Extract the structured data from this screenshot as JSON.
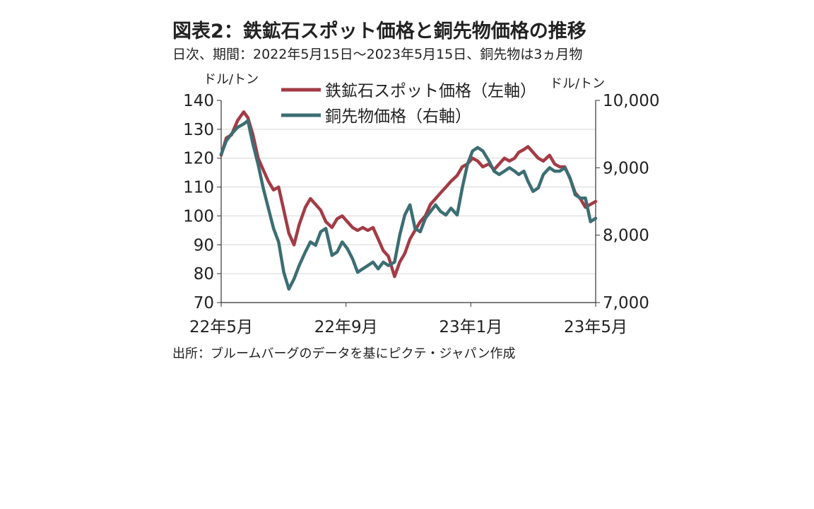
{
  "title": "図表2：鉄鉱石スポット価格と銅先物価格の推移",
  "subtitle": "日次、期間：2022年5月15日～2023年5月15日、銅先物は3ヵ月物",
  "source": "出所：ブルームバーグのデータを基にピクテ・ジャパン作成",
  "chart_data": {
    "type": "line",
    "ylabel_left": "ドル/トン",
    "ylabel_right": "ドル/トン",
    "ylim_left": [
      70,
      140
    ],
    "ylim_right": [
      7000,
      10000
    ],
    "yticks_left": [
      "140",
      "130",
      "120",
      "110",
      "100",
      "90",
      "80",
      "70"
    ],
    "yticks_right": [
      "10,000",
      "9,000",
      "8,000",
      "7,000"
    ],
    "xticks": [
      "22年5月",
      "22年9月",
      "23年1月",
      "23年5月"
    ],
    "xlim": [
      "2022-05-15",
      "2023-05-15"
    ],
    "grid": true,
    "legend_position": "top-center",
    "series": [
      {
        "name": "鉄鉱石スポット価格（左軸）",
        "axis": "left",
        "color": "#A33B45",
        "points": [
          [
            "2022-05-15",
            121
          ],
          [
            "2022-05-20",
            127
          ],
          [
            "2022-05-25",
            128
          ],
          [
            "2022-05-31",
            133
          ],
          [
            "2022-06-06",
            136
          ],
          [
            "2022-06-10",
            134
          ],
          [
            "2022-06-15",
            128
          ],
          [
            "2022-06-20",
            120
          ],
          [
            "2022-06-25",
            116
          ],
          [
            "2022-06-30",
            112
          ],
          [
            "2022-07-05",
            109
          ],
          [
            "2022-07-10",
            110
          ],
          [
            "2022-07-15",
            102
          ],
          [
            "2022-07-20",
            94
          ],
          [
            "2022-07-25",
            90
          ],
          [
            "2022-07-30",
            97
          ],
          [
            "2022-08-05",
            103
          ],
          [
            "2022-08-10",
            106
          ],
          [
            "2022-08-15",
            104
          ],
          [
            "2022-08-20",
            102
          ],
          [
            "2022-08-25",
            98
          ],
          [
            "2022-08-31",
            96
          ],
          [
            "2022-09-05",
            99
          ],
          [
            "2022-09-10",
            100
          ],
          [
            "2022-09-15",
            98
          ],
          [
            "2022-09-20",
            96
          ],
          [
            "2022-09-25",
            95
          ],
          [
            "2022-09-30",
            96
          ],
          [
            "2022-10-05",
            95
          ],
          [
            "2022-10-10",
            96
          ],
          [
            "2022-10-15",
            92
          ],
          [
            "2022-10-20",
            88
          ],
          [
            "2022-10-25",
            86
          ],
          [
            "2022-10-31",
            79
          ],
          [
            "2022-11-05",
            84
          ],
          [
            "2022-11-10",
            87
          ],
          [
            "2022-11-15",
            92
          ],
          [
            "2022-11-20",
            95
          ],
          [
            "2022-11-25",
            98
          ],
          [
            "2022-11-30",
            100
          ],
          [
            "2022-12-05",
            104
          ],
          [
            "2022-12-10",
            106
          ],
          [
            "2022-12-15",
            108
          ],
          [
            "2022-12-20",
            110
          ],
          [
            "2022-12-25",
            112
          ],
          [
            "2022-12-31",
            114
          ],
          [
            "2023-01-05",
            117
          ],
          [
            "2023-01-10",
            118
          ],
          [
            "2023-01-15",
            120
          ],
          [
            "2023-01-20",
            119
          ],
          [
            "2023-01-25",
            117
          ],
          [
            "2023-01-31",
            118
          ],
          [
            "2023-02-05",
            116
          ],
          [
            "2023-02-10",
            118
          ],
          [
            "2023-02-15",
            120
          ],
          [
            "2023-02-20",
            119
          ],
          [
            "2023-02-25",
            120
          ],
          [
            "2023-03-01",
            122
          ],
          [
            "2023-03-06",
            123
          ],
          [
            "2023-03-10",
            124
          ],
          [
            "2023-03-15",
            122
          ],
          [
            "2023-03-20",
            120
          ],
          [
            "2023-03-25",
            119
          ],
          [
            "2023-03-31",
            121
          ],
          [
            "2023-04-05",
            118
          ],
          [
            "2023-04-10",
            117
          ],
          [
            "2023-04-15",
            117
          ],
          [
            "2023-04-20",
            113
          ],
          [
            "2023-04-25",
            108
          ],
          [
            "2023-04-30",
            106
          ],
          [
            "2023-05-05",
            103
          ],
          [
            "2023-05-10",
            104
          ],
          [
            "2023-05-15",
            105
          ]
        ]
      },
      {
        "name": "銅先物価格（右軸）",
        "axis": "right",
        "color": "#3C6E73",
        "points": [
          [
            "2022-05-15",
            9200
          ],
          [
            "2022-05-20",
            9400
          ],
          [
            "2022-05-25",
            9500
          ],
          [
            "2022-05-31",
            9600
          ],
          [
            "2022-06-06",
            9650
          ],
          [
            "2022-06-10",
            9700
          ],
          [
            "2022-06-15",
            9350
          ],
          [
            "2022-06-20",
            9050
          ],
          [
            "2022-06-25",
            8700
          ],
          [
            "2022-06-30",
            8400
          ],
          [
            "2022-07-05",
            8100
          ],
          [
            "2022-07-10",
            7900
          ],
          [
            "2022-07-15",
            7450
          ],
          [
            "2022-07-20",
            7200
          ],
          [
            "2022-07-25",
            7350
          ],
          [
            "2022-07-30",
            7550
          ],
          [
            "2022-08-05",
            7750
          ],
          [
            "2022-08-10",
            7900
          ],
          [
            "2022-08-15",
            7850
          ],
          [
            "2022-08-20",
            8050
          ],
          [
            "2022-08-25",
            8100
          ],
          [
            "2022-08-31",
            7700
          ],
          [
            "2022-09-05",
            7750
          ],
          [
            "2022-09-10",
            7900
          ],
          [
            "2022-09-15",
            7800
          ],
          [
            "2022-09-20",
            7650
          ],
          [
            "2022-09-25",
            7450
          ],
          [
            "2022-09-30",
            7500
          ],
          [
            "2022-10-05",
            7550
          ],
          [
            "2022-10-10",
            7600
          ],
          [
            "2022-10-15",
            7500
          ],
          [
            "2022-10-20",
            7600
          ],
          [
            "2022-10-25",
            7550
          ],
          [
            "2022-10-31",
            7600
          ],
          [
            "2022-11-05",
            8000
          ],
          [
            "2022-11-10",
            8300
          ],
          [
            "2022-11-15",
            8450
          ],
          [
            "2022-11-20",
            8100
          ],
          [
            "2022-11-25",
            8050
          ],
          [
            "2022-11-30",
            8250
          ],
          [
            "2022-12-05",
            8350
          ],
          [
            "2022-12-10",
            8450
          ],
          [
            "2022-12-15",
            8350
          ],
          [
            "2022-12-20",
            8300
          ],
          [
            "2022-12-25",
            8400
          ],
          [
            "2022-12-31",
            8300
          ],
          [
            "2023-01-05",
            8700
          ],
          [
            "2023-01-10",
            9050
          ],
          [
            "2023-01-15",
            9250
          ],
          [
            "2023-01-20",
            9300
          ],
          [
            "2023-01-25",
            9250
          ],
          [
            "2023-01-31",
            9100
          ],
          [
            "2023-02-05",
            8950
          ],
          [
            "2023-02-10",
            8900
          ],
          [
            "2023-02-15",
            8950
          ],
          [
            "2023-02-20",
            9000
          ],
          [
            "2023-02-25",
            8950
          ],
          [
            "2023-03-01",
            8900
          ],
          [
            "2023-03-06",
            8950
          ],
          [
            "2023-03-10",
            8800
          ],
          [
            "2023-03-15",
            8650
          ],
          [
            "2023-03-20",
            8700
          ],
          [
            "2023-03-25",
            8900
          ],
          [
            "2023-03-31",
            9000
          ],
          [
            "2023-04-05",
            8950
          ],
          [
            "2023-04-10",
            8950
          ],
          [
            "2023-04-15",
            9000
          ],
          [
            "2023-04-20",
            8850
          ],
          [
            "2023-04-25",
            8600
          ],
          [
            "2023-04-30",
            8550
          ],
          [
            "2023-05-05",
            8550
          ],
          [
            "2023-05-10",
            8200
          ],
          [
            "2023-05-15",
            8250
          ]
        ]
      }
    ]
  }
}
